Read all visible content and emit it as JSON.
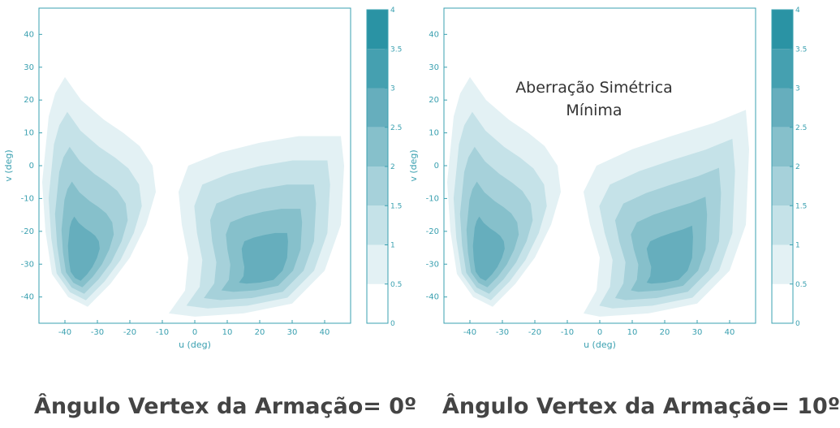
{
  "chart_data": [
    {
      "type": "contour",
      "annotation": "",
      "caption": "Ângulo Vertex da Armação= 0º",
      "xlabel": "u (deg)",
      "ylabel": "v (deg)",
      "xticks": [
        -40,
        -30,
        -20,
        -10,
        0,
        10,
        20,
        30,
        40
      ],
      "yticks": [
        -40,
        -30,
        -20,
        -10,
        0,
        10,
        20,
        30,
        40
      ],
      "xlim": [
        -48,
        48
      ],
      "ylim": [
        -48,
        48
      ],
      "colorbar": {
        "ticks": [
          "0",
          "0.5",
          "1",
          "1.5",
          "2",
          "2.5",
          "3",
          "3.5",
          "4"
        ],
        "range": [
          0,
          4
        ]
      },
      "levels": [
        {
          "value": 0.5,
          "color": "#e3f1f4"
        },
        {
          "value": 1.0,
          "color": "#c5e2e8"
        },
        {
          "value": 1.5,
          "color": "#a6d1da"
        },
        {
          "value": 2.0,
          "color": "#86c0cb"
        },
        {
          "value": 2.5,
          "color": "#66aebd"
        }
      ]
    },
    {
      "type": "contour",
      "annotation": "Aberração Simétrica Mínima",
      "caption": "Ângulo Vertex da Armação= 10º",
      "xlabel": "u (deg)",
      "ylabel": "v (deg)",
      "xticks": [
        -40,
        -30,
        -20,
        -10,
        0,
        10,
        20,
        30,
        40
      ],
      "yticks": [
        -40,
        -30,
        -20,
        -10,
        0,
        10,
        20,
        30,
        40
      ],
      "xlim": [
        -48,
        48
      ],
      "ylim": [
        -48,
        48
      ],
      "colorbar": {
        "ticks": [
          "0",
          "0.5",
          "1",
          "1.5",
          "2",
          "2.5",
          "3",
          "3.5",
          "4"
        ],
        "range": [
          0,
          4
        ]
      },
      "levels": [
        {
          "value": 0.5,
          "color": "#e3f1f4"
        },
        {
          "value": 1.0,
          "color": "#c5e2e8"
        },
        {
          "value": 1.5,
          "color": "#a6d1da"
        },
        {
          "value": 2.0,
          "color": "#86c0cb"
        },
        {
          "value": 2.5,
          "color": "#66aebd"
        }
      ]
    }
  ]
}
